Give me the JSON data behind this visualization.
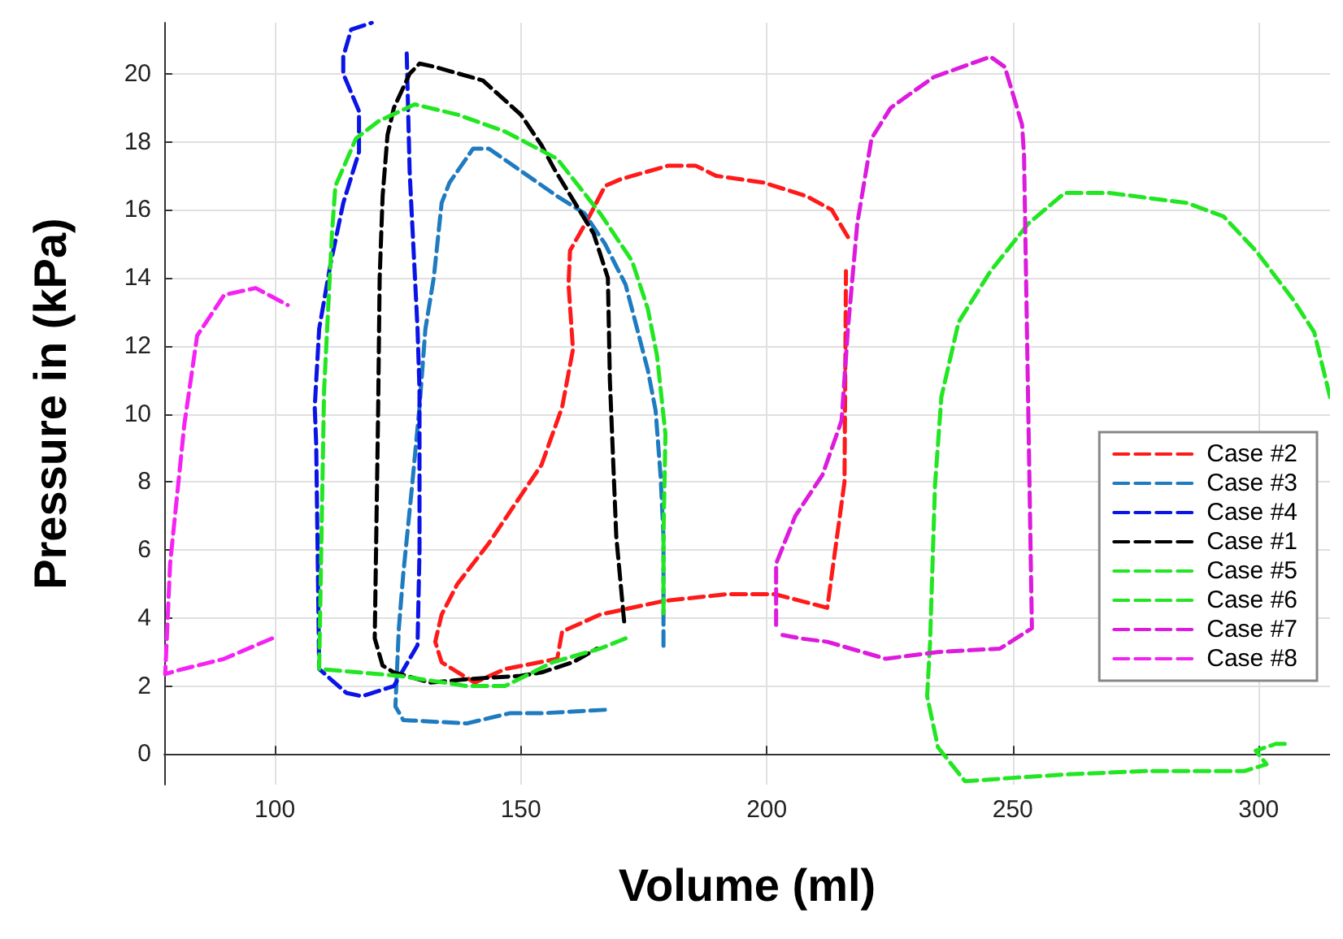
{
  "chart_data": {
    "type": "line",
    "xlabel": "Volume (ml)",
    "ylabel": "Pressure in (kPa)",
    "xlim": [
      77.5,
      314.5
    ],
    "ylim": [
      -0.9,
      21.5
    ],
    "xticks": [
      100,
      150,
      200,
      250,
      300
    ],
    "yticks": [
      0,
      2,
      4,
      6,
      8,
      10,
      12,
      14,
      16,
      18,
      20
    ],
    "grid": true,
    "legend": "right",
    "marker": "none",
    "line_style": "dashed",
    "series": [
      {
        "name": "Case #2",
        "color": "#ff1a1a",
        "x": [
          216.5,
          213.2,
          208.1,
          199.4,
          189.7,
          185.5,
          180.0,
          170.3,
          167.1,
          163.9,
          160.0,
          159.7,
          160.6,
          158.4,
          154.2,
          150.0,
          143.5,
          137.1,
          133.9,
          132.6,
          133.9,
          140.6,
          146.8,
          157.4,
          158.4,
          166.1,
          179.0,
          191.9,
          201.6,
          212.3,
          215.8,
          216.1
        ],
        "values": [
          15.2,
          16.0,
          16.4,
          16.8,
          17.0,
          17.3,
          17.3,
          16.9,
          16.7,
          15.8,
          14.8,
          13.8,
          11.9,
          10.2,
          8.5,
          7.6,
          6.2,
          5.0,
          4.1,
          3.3,
          2.7,
          2.1,
          2.5,
          2.8,
          3.6,
          4.1,
          4.5,
          4.7,
          4.7,
          4.3,
          8.0,
          14.2
        ]
      },
      {
        "name": "Case #3",
        "color": "#1f7bc0",
        "x": [
          167.1,
          154.2,
          147.7,
          139.0,
          126.1,
          124.5,
          125.2,
          126.1,
          127.7,
          129.4,
          130.6,
          132.3,
          133.9,
          135.5,
          140.3,
          143.5,
          157.4,
          162.9,
          167.1,
          171.3,
          175.8,
          177.4,
          178.4,
          179.0,
          179.0
        ],
        "values": [
          1.3,
          1.2,
          1.2,
          0.9,
          1.0,
          1.4,
          3.7,
          5.3,
          7.6,
          10.2,
          12.5,
          14.0,
          16.2,
          16.8,
          17.8,
          17.8,
          16.4,
          15.9,
          15.0,
          13.8,
          11.3,
          10.1,
          8.2,
          6.4,
          3.0
        ]
      },
      {
        "name": "Case #4",
        "color": "#0a14e6",
        "x": [
          126.8,
          127.4,
          129.0,
          129.4,
          129.4,
          129.0,
          124.2,
          117.7,
          114.5,
          109.0,
          108.4,
          108.1,
          109.0,
          111.3,
          113.9,
          117.1,
          117.1,
          113.9,
          113.9,
          115.5,
          119.7
        ],
        "values": [
          20.6,
          17.1,
          12.5,
          10.7,
          6.0,
          3.2,
          2.0,
          1.7,
          1.8,
          2.5,
          9.1,
          10.2,
          12.5,
          14.4,
          16.2,
          17.7,
          18.9,
          20.0,
          20.5,
          21.3,
          21.5
        ]
      },
      {
        "name": "Case #1",
        "color": "#000000",
        "x": [
          171.0,
          169.4,
          168.1,
          167.7,
          164.8,
          156.8,
          154.2,
          150.0,
          142.3,
          132.6,
          129.4,
          127.4,
          124.2,
          122.9,
          121.9,
          121.3,
          121.0,
          120.3,
          121.9,
          124.2,
          131.6,
          139.0,
          150.0,
          154.2,
          160.6,
          165.5
        ],
        "values": [
          3.9,
          6.4,
          11.0,
          14.0,
          15.3,
          17.2,
          17.9,
          18.8,
          19.8,
          20.2,
          20.3,
          20.0,
          19.0,
          18.2,
          16.4,
          14.0,
          10.2,
          3.4,
          2.6,
          2.4,
          2.1,
          2.2,
          2.3,
          2.4,
          2.7,
          3.1
        ]
      },
      {
        "name": "Case #5",
        "color": "#22e622",
        "x": [
          314.5,
          311.3,
          306.8,
          299.4,
          292.9,
          285.5,
          269.4,
          260.6,
          253.2,
          245.5,
          239.0,
          235.5,
          234.2,
          233.2,
          232.6,
          234.8,
          240.3,
          250.0,
          260.6,
          276.8,
          297.1,
          301.6,
          299.4,
          303.5,
          305.8
        ],
        "values": [
          10.5,
          12.4,
          13.4,
          14.8,
          15.8,
          16.2,
          16.5,
          16.5,
          15.6,
          14.2,
          12.7,
          10.5,
          7.9,
          3.3,
          1.7,
          0.2,
          -0.8,
          -0.7,
          -0.6,
          -0.5,
          -0.5,
          -0.3,
          0.1,
          0.3,
          0.3
        ]
      },
      {
        "name": "Case #6",
        "color": "#22e622",
        "x": [
          171.3,
          166.1,
          156.5,
          146.8,
          139.0,
          125.2,
          109.0,
          110.0,
          111.6,
          112.3,
          116.5,
          121.0,
          128.4,
          137.1,
          146.8,
          157.4,
          166.1,
          172.6,
          175.8,
          177.7,
          179.4,
          179.0,
          179.0
        ],
        "values": [
          3.4,
          3.1,
          2.7,
          2.0,
          2.0,
          2.3,
          2.5,
          10.7,
          15.3,
          16.7,
          18.1,
          18.6,
          19.1,
          18.8,
          18.3,
          17.5,
          15.9,
          14.5,
          13.1,
          11.7,
          9.4,
          6.4,
          4.1
        ]
      },
      {
        "name": "Case #7",
        "color": "#dd1add",
        "x": [
          201.9,
          201.9,
          205.8,
          211.3,
          215.2,
          216.5,
          218.4,
          221.3,
          225.2,
          233.9,
          243.5,
          245.5,
          248.4,
          251.9,
          252.3,
          253.9,
          247.4,
          234.8,
          224.2,
          212.3,
          206.8,
          203.2
        ],
        "values": [
          3.8,
          5.6,
          7.0,
          8.2,
          9.8,
          12.5,
          15.6,
          18.1,
          19.0,
          19.9,
          20.4,
          20.5,
          20.2,
          18.5,
          17.6,
          3.7,
          3.1,
          3.0,
          2.8,
          3.3,
          3.4,
          3.5
        ]
      },
      {
        "name": "Case #8",
        "color": "#f522f5",
        "x": [
          99.4,
          89.7,
          80.0,
          77.7,
          78.7,
          81.6,
          84.2,
          89.7,
          96.1,
          102.6
        ],
        "values": [
          3.4,
          2.8,
          2.45,
          2.35,
          5.6,
          9.7,
          12.3,
          13.5,
          13.7,
          13.2
        ]
      }
    ]
  }
}
